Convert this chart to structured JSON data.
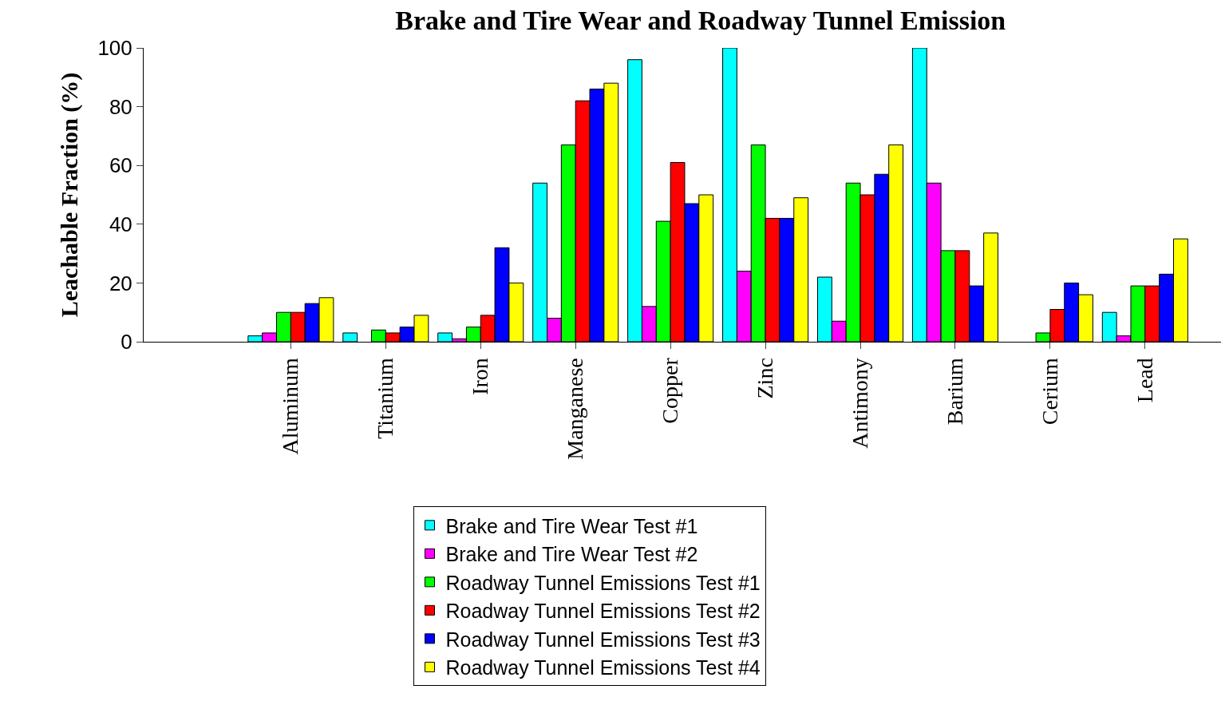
{
  "chart_data": {
    "type": "bar",
    "title": "Brake and Tire Wear and Roadway Tunnel Emission",
    "ylabel": "Leachable Fraction (%)",
    "categories": [
      "Aluminum",
      "Titanium",
      "Iron",
      "Manganese",
      "Copper",
      "Zinc",
      "Antimony",
      "Barium",
      "Cerium",
      "Lead"
    ],
    "series": [
      {
        "name": "Brake and Tire Wear Test #1",
        "color": "#00ffff",
        "values": [
          2,
          3,
          3,
          54,
          96,
          100,
          22,
          100,
          null,
          10
        ]
      },
      {
        "name": "Brake and Tire Wear Test #2",
        "color": "#ff00ff",
        "values": [
          3,
          null,
          1,
          8,
          12,
          24,
          7,
          54,
          null,
          2
        ]
      },
      {
        "name": "Roadway Tunnel Emissions Test #1",
        "color": "#00ff00",
        "values": [
          10,
          4,
          5,
          67,
          41,
          67,
          54,
          31,
          3,
          19
        ]
      },
      {
        "name": "Roadway Tunnel Emissions Test #2",
        "color": "#ff0000",
        "values": [
          10,
          3,
          9,
          82,
          61,
          42,
          50,
          31,
          11,
          19
        ]
      },
      {
        "name": "Roadway Tunnel Emissions Test #3",
        "color": "#0000ff",
        "values": [
          13,
          5,
          32,
          86,
          47,
          42,
          57,
          19,
          20,
          23
        ]
      },
      {
        "name": "Roadway Tunnel Emissions Test #4",
        "color": "#ffff00",
        "values": [
          15,
          9,
          20,
          88,
          50,
          49,
          67,
          37,
          16,
          35
        ]
      }
    ],
    "ylim": [
      0,
      100
    ],
    "yticks": [
      0,
      20,
      40,
      60,
      80,
      100
    ],
    "legend": "bottom"
  }
}
